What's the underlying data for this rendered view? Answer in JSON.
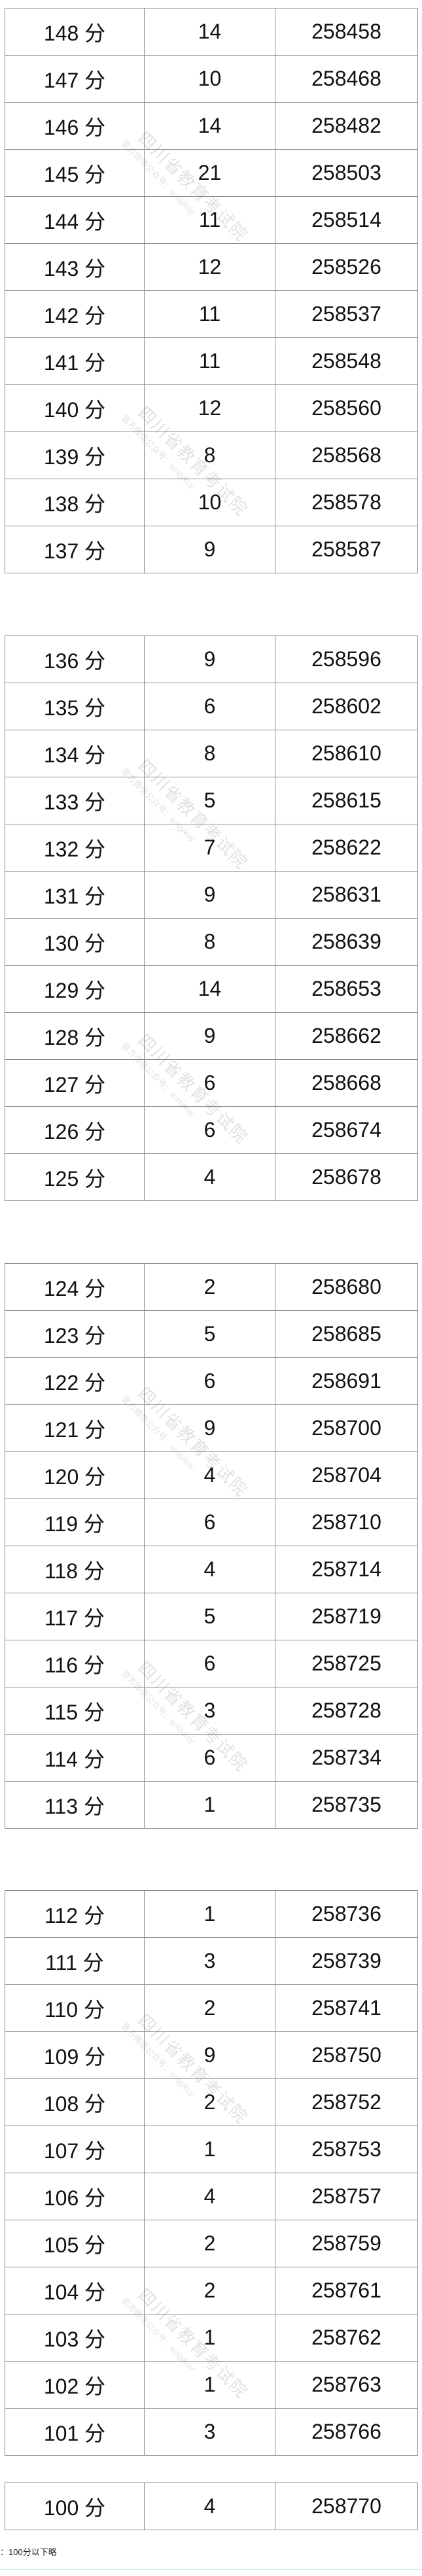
{
  "groups": [
    {
      "rows": [
        {
          "score": "148 分",
          "count": "14",
          "cumulative": "258458"
        },
        {
          "score": "147 分",
          "count": "10",
          "cumulative": "258468"
        },
        {
          "score": "146 分",
          "count": "14",
          "cumulative": "258482"
        },
        {
          "score": "145 分",
          "count": "21",
          "cumulative": "258503"
        },
        {
          "score": "144 分",
          "count": "11",
          "cumulative": "258514"
        },
        {
          "score": "143 分",
          "count": "12",
          "cumulative": "258526"
        },
        {
          "score": "142 分",
          "count": "11",
          "cumulative": "258537"
        },
        {
          "score": "141 分",
          "count": "11",
          "cumulative": "258548"
        },
        {
          "score": "140 分",
          "count": "12",
          "cumulative": "258560"
        },
        {
          "score": "139 分",
          "count": "8",
          "cumulative": "258568"
        },
        {
          "score": "138 分",
          "count": "10",
          "cumulative": "258578"
        },
        {
          "score": "137 分",
          "count": "9",
          "cumulative": "258587"
        }
      ]
    },
    {
      "rows": [
        {
          "score": "136 分",
          "count": "9",
          "cumulative": "258596"
        },
        {
          "score": "135 分",
          "count": "6",
          "cumulative": "258602"
        },
        {
          "score": "134 分",
          "count": "8",
          "cumulative": "258610"
        },
        {
          "score": "133 分",
          "count": "5",
          "cumulative": "258615"
        },
        {
          "score": "132 分",
          "count": "7",
          "cumulative": "258622"
        },
        {
          "score": "131 分",
          "count": "9",
          "cumulative": "258631"
        },
        {
          "score": "130 分",
          "count": "8",
          "cumulative": "258639"
        },
        {
          "score": "129 分",
          "count": "14",
          "cumulative": "258653"
        },
        {
          "score": "128 分",
          "count": "9",
          "cumulative": "258662"
        },
        {
          "score": "127 分",
          "count": "6",
          "cumulative": "258668"
        },
        {
          "score": "126 分",
          "count": "6",
          "cumulative": "258674"
        },
        {
          "score": "125 分",
          "count": "4",
          "cumulative": "258678"
        }
      ]
    },
    {
      "rows": [
        {
          "score": "124 分",
          "count": "2",
          "cumulative": "258680"
        },
        {
          "score": "123 分",
          "count": "5",
          "cumulative": "258685"
        },
        {
          "score": "122 分",
          "count": "6",
          "cumulative": "258691"
        },
        {
          "score": "121 分",
          "count": "9",
          "cumulative": "258700"
        },
        {
          "score": "120 分",
          "count": "4",
          "cumulative": "258704"
        },
        {
          "score": "119 分",
          "count": "6",
          "cumulative": "258710"
        },
        {
          "score": "118 分",
          "count": "4",
          "cumulative": "258714"
        },
        {
          "score": "117 分",
          "count": "5",
          "cumulative": "258719"
        },
        {
          "score": "116 分",
          "count": "6",
          "cumulative": "258725"
        },
        {
          "score": "115 分",
          "count": "3",
          "cumulative": "258728"
        },
        {
          "score": "114 分",
          "count": "6",
          "cumulative": "258734"
        },
        {
          "score": "113 分",
          "count": "1",
          "cumulative": "258735"
        }
      ]
    },
    {
      "rows": [
        {
          "score": "112 分",
          "count": "1",
          "cumulative": "258736"
        },
        {
          "score": "111 分",
          "count": "3",
          "cumulative": "258739"
        },
        {
          "score": "110 分",
          "count": "2",
          "cumulative": "258741"
        },
        {
          "score": "109 分",
          "count": "9",
          "cumulative": "258750"
        },
        {
          "score": "108 分",
          "count": "2",
          "cumulative": "258752"
        },
        {
          "score": "107 分",
          "count": "1",
          "cumulative": "258753"
        },
        {
          "score": "106 分",
          "count": "4",
          "cumulative": "258757"
        },
        {
          "score": "105 分",
          "count": "2",
          "cumulative": "258759"
        },
        {
          "score": "104 分",
          "count": "2",
          "cumulative": "258761"
        },
        {
          "score": "103 分",
          "count": "1",
          "cumulative": "258762"
        },
        {
          "score": "102 分",
          "count": "1",
          "cumulative": "258763"
        },
        {
          "score": "101 分",
          "count": "3",
          "cumulative": "258766"
        }
      ]
    },
    {
      "rows": [
        {
          "score": "100 分",
          "count": "4",
          "cumulative": "258770"
        }
      ]
    }
  ],
  "watermark": {
    "line1": "四川省教育考试院",
    "line2": "官方微信公众号：scsjyksy"
  },
  "note": "：100分以下略",
  "colors": {
    "border": "#8a8a8a",
    "rule": "#a9d3ea"
  }
}
